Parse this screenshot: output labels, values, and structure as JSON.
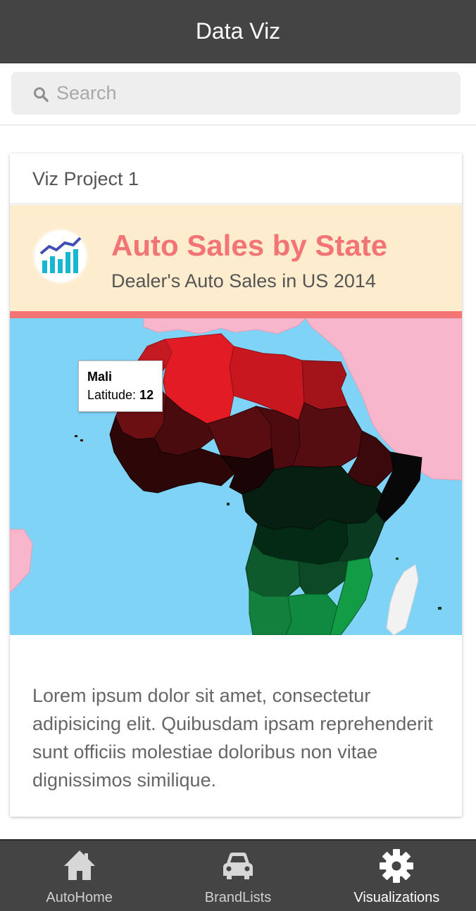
{
  "header": {
    "title": "Data Viz"
  },
  "search": {
    "placeholder": "Search",
    "value": ""
  },
  "card": {
    "title": "Viz Project 1",
    "banner": {
      "title": "Auto Sales by State",
      "subtitle": "Dealer's Auto Sales in US 2014"
    },
    "map": {
      "tooltip": {
        "name": "Mali",
        "label": "Latitude:",
        "value": "12"
      }
    },
    "description": "Lorem ipsum dolor sit amet, consectetur adipisicing elit. Quibusdam ipsam reprehenderit sunt officiis molestiae doloribus non vitae dignissimos similique."
  },
  "tabs": [
    {
      "label": "AutoHome",
      "icon": "home-icon",
      "active": false
    },
    {
      "label": "BrandLists",
      "icon": "car-icon",
      "active": false
    },
    {
      "label": "Visualizations",
      "icon": "gear-icon",
      "active": true
    }
  ],
  "colors": {
    "header_bg": "#444444",
    "accent": "#f27474",
    "banner_bg": "#fdecce",
    "ocean": "#7fd3f7",
    "other_land": "#f7b6cc"
  }
}
